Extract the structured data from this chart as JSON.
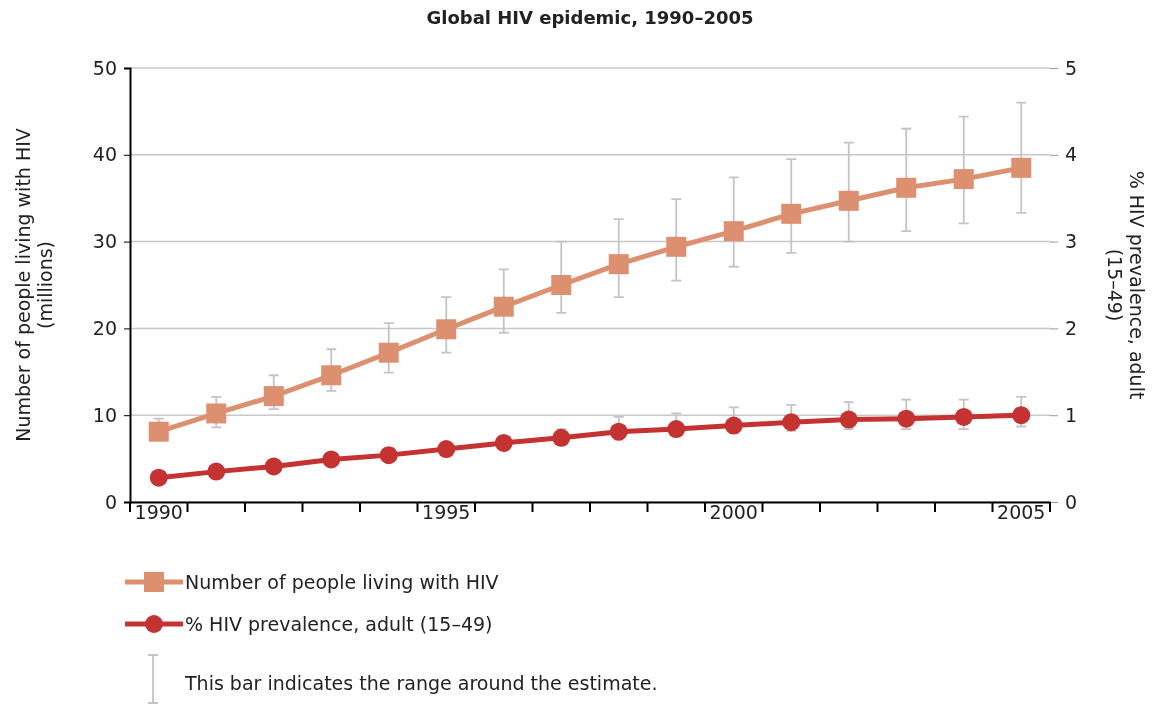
{
  "chart_data": {
    "type": "line",
    "title": "Global HIV epidemic, 1990–2005",
    "ylabel": "Number of people living with HIV\n(millions)",
    "y2label": "% HIV prevalence, adult\n(15–49)",
    "categories": [
      "1990",
      null,
      null,
      null,
      null,
      "1995",
      null,
      null,
      null,
      null,
      "2000",
      null,
      null,
      null,
      null,
      "2005"
    ],
    "ylim": [
      0,
      50
    ],
    "yticks": [
      0,
      10,
      20,
      30,
      40,
      50
    ],
    "y2lim": [
      0,
      5
    ],
    "y2ticks": [
      0,
      1,
      2,
      3,
      4,
      5
    ],
    "grid": "y",
    "legend": "bottom",
    "line_style": "solid",
    "series": [
      {
        "name": "Number of people living with HIV",
        "color": "#dc9070",
        "marker": "square",
        "values": [
          8.1,
          10.2,
          12.2,
          14.6,
          17.2,
          19.9,
          22.5,
          25.0,
          27.4,
          29.4,
          31.2,
          33.2,
          34.7,
          36.2,
          37.2,
          38.5
        ],
        "errors": [
          [
            8.1,
            9.6
          ],
          [
            8.6,
            12.1
          ],
          [
            10.7,
            14.6
          ],
          [
            12.8,
            17.6
          ],
          [
            14.9,
            20.6
          ],
          [
            17.2,
            23.6
          ],
          [
            19.5,
            26.8
          ],
          [
            21.8,
            30.0
          ],
          [
            23.6,
            32.6
          ],
          [
            25.5,
            34.9
          ],
          [
            27.1,
            37.4
          ],
          [
            28.7,
            39.5
          ],
          [
            30.0,
            41.4
          ],
          [
            31.2,
            43.0
          ],
          [
            32.1,
            44.4
          ],
          [
            33.3,
            46.0
          ]
        ]
      },
      {
        "name": "% HIV prevalence, adult (15–49)",
        "color": "#c43232",
        "marker": "circle",
        "axis": "y2",
        "values": [
          0.28,
          0.35,
          0.41,
          0.49,
          0.54,
          0.61,
          0.68,
          0.74,
          0.81,
          0.84,
          0.88,
          0.92,
          0.95,
          0.96,
          0.98,
          1.0
        ],
        "errors": [
          null,
          null,
          null,
          null,
          [
            0.48,
            0.62
          ],
          null,
          null,
          [
            0.66,
            0.84
          ],
          [
            0.72,
            0.98
          ],
          [
            0.76,
            1.02
          ],
          [
            0.8,
            1.09
          ],
          [
            0.82,
            1.12
          ],
          [
            0.84,
            1.15
          ],
          [
            0.84,
            1.18
          ],
          [
            0.84,
            1.18
          ],
          [
            0.87,
            1.21
          ]
        ]
      }
    ],
    "annotations": [
      "This bar indicates the range around the estimate."
    ]
  }
}
